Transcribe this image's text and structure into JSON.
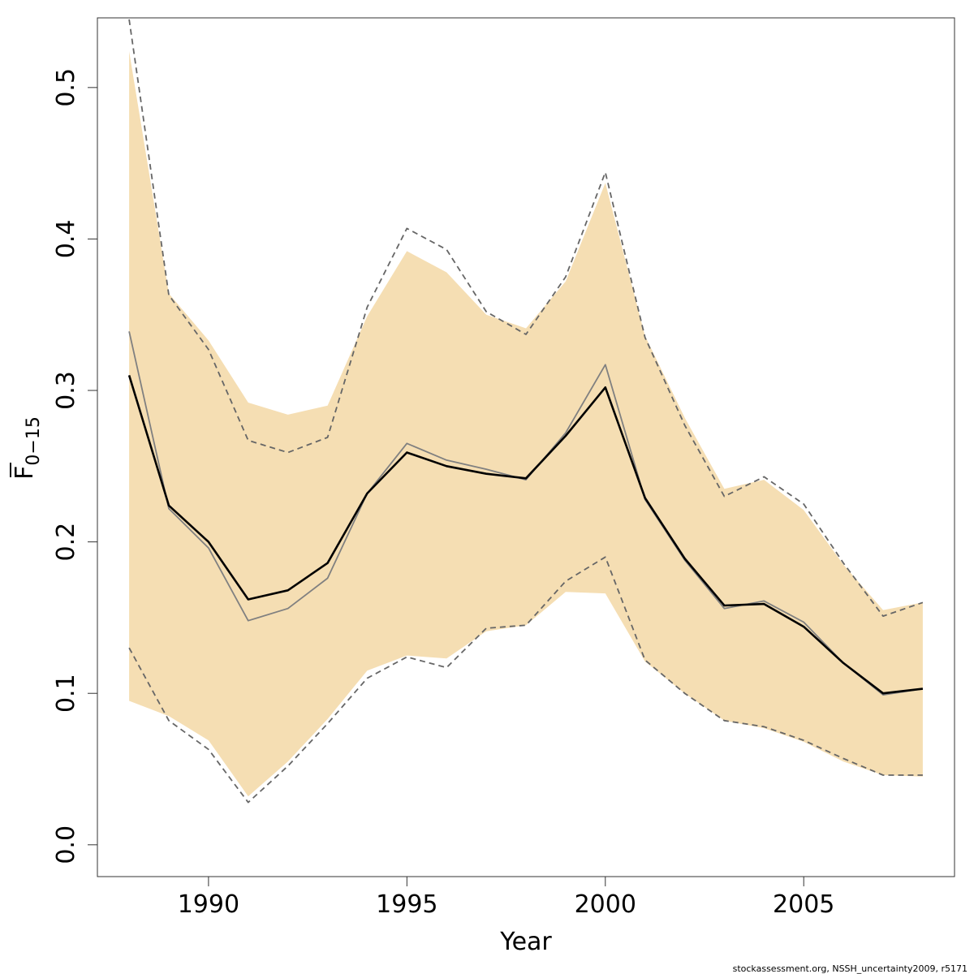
{
  "chart_data": {
    "type": "line",
    "title": "",
    "xlabel": "Year",
    "ylabel": {
      "base": "F",
      "subscript": "0−15"
    },
    "caption": "stockassessment.org, NSSH_uncertainty2009, r5171",
    "xlim": [
      1987.2,
      2008.8
    ],
    "ylim": [
      -0.021,
      0.546
    ],
    "x_ticks": [
      1990,
      1995,
      2000,
      2005
    ],
    "x_tick_labels": [
      "1990",
      "1995",
      "2000",
      "2005"
    ],
    "y_ticks": [
      0.0,
      0.1,
      0.2,
      0.3,
      0.4,
      0.5
    ],
    "y_tick_labels": [
      "0.0",
      "0.1",
      "0.2",
      "0.3",
      "0.4",
      "0.5"
    ],
    "grid": false,
    "legend": "none",
    "x": [
      1988,
      1989,
      1990,
      1991,
      1992,
      1993,
      1994,
      1995,
      1996,
      1997,
      1998,
      1999,
      2000,
      2001,
      2002,
      2003,
      2004,
      2005,
      2006,
      2007,
      2008
    ],
    "band": {
      "color": "#F5DEB3",
      "lower": [
        0.095,
        0.085,
        0.069,
        0.032,
        0.055,
        0.083,
        0.115,
        0.125,
        0.123,
        0.141,
        0.145,
        0.167,
        0.166,
        0.121,
        0.1,
        0.082,
        0.077,
        0.068,
        0.055,
        0.046,
        0.045
      ],
      "upper": [
        0.524,
        0.364,
        0.333,
        0.292,
        0.284,
        0.29,
        0.349,
        0.392,
        0.378,
        0.35,
        0.341,
        0.372,
        0.437,
        0.336,
        0.282,
        0.235,
        0.241,
        0.221,
        0.185,
        0.155,
        0.16
      ]
    },
    "series": [
      {
        "style": "solid",
        "color": "#000000",
        "values": [
          0.31,
          0.224,
          0.2,
          0.162,
          0.168,
          0.186,
          0.232,
          0.259,
          0.25,
          0.245,
          0.242,
          0.27,
          0.302,
          0.229,
          0.189,
          0.158,
          0.159,
          0.144,
          0.12,
          0.1,
          0.103
        ]
      },
      {
        "style": "solid",
        "color": "#808080",
        "values": [
          0.339,
          0.222,
          0.196,
          0.148,
          0.156,
          0.176,
          0.232,
          0.265,
          0.254,
          0.248,
          0.241,
          0.272,
          0.317,
          0.228,
          0.188,
          0.156,
          0.161,
          0.147,
          0.12,
          0.099,
          0.103
        ]
      },
      {
        "style": "dashed",
        "color": "#666666",
        "values": [
          0.545,
          0.363,
          0.327,
          0.267,
          0.259,
          0.269,
          0.355,
          0.407,
          0.393,
          0.352,
          0.337,
          0.375,
          0.444,
          0.335,
          0.277,
          0.23,
          0.243,
          0.225,
          0.186,
          0.151,
          0.16
        ]
      },
      {
        "style": "dashed",
        "color": "#666666",
        "values": [
          0.13,
          0.082,
          0.063,
          0.028,
          0.052,
          0.08,
          0.11,
          0.124,
          0.117,
          0.143,
          0.145,
          0.174,
          0.19,
          0.122,
          0.1,
          0.082,
          0.078,
          0.069,
          0.057,
          0.046,
          0.046
        ]
      }
    ]
  }
}
